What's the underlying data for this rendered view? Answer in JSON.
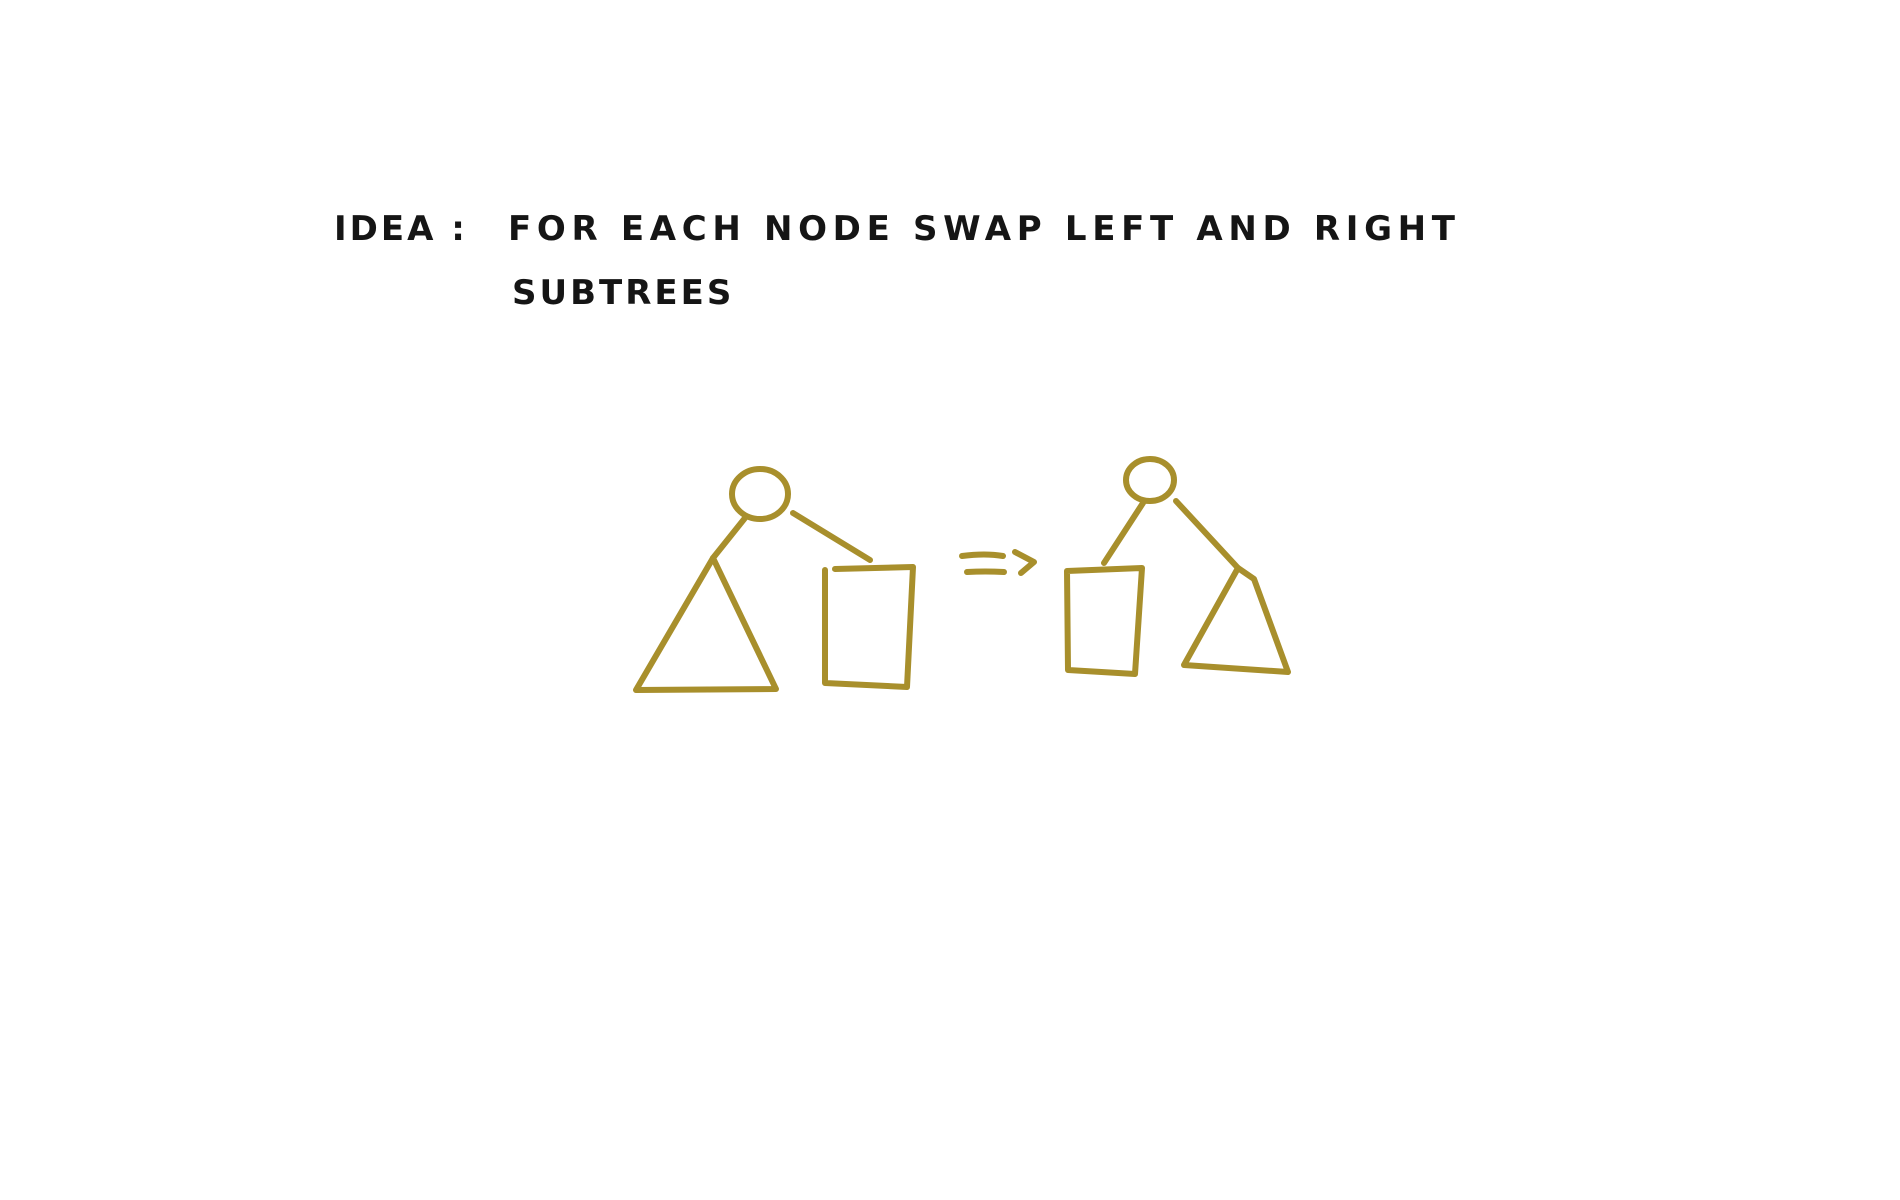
{
  "note": {
    "label": "IDEA :",
    "line1": "FOR EACH NODE SWAP LEFT AND RIGHT",
    "line2": "SUBTREES"
  },
  "diagram": {
    "arrow": "=>",
    "colors": {
      "ink": "#151515",
      "sketch": "#A88F2C",
      "background": "#ffffff"
    }
  }
}
